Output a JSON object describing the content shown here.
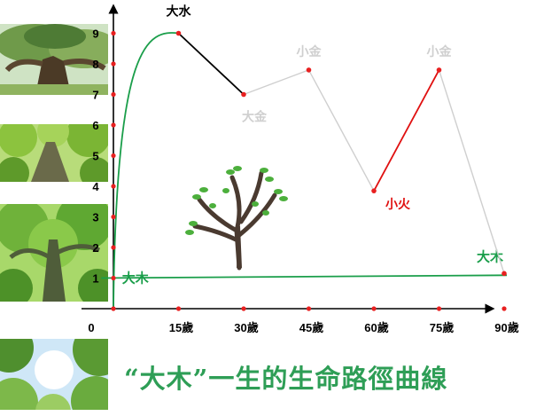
{
  "caption": "“大木”一生的生命路徑曲線",
  "colors": {
    "green": "#1a9e4a",
    "black": "#000000",
    "gray": "#cfcfcf",
    "red": "#e01010",
    "point": "#e82020"
  },
  "chart_data": {
    "type": "line",
    "x_ticks": [
      "15歲",
      "30歲",
      "45歲",
      "60歲",
      "75歲",
      "90歲"
    ],
    "x_tick_values": [
      15,
      30,
      45,
      60,
      75,
      90
    ],
    "y_ticks": [
      1,
      2,
      3,
      4,
      5,
      6,
      7,
      8,
      9
    ],
    "origin_label": "0",
    "xlim": [
      0,
      95
    ],
    "ylim": [
      0,
      10
    ],
    "baseline": {
      "label": "大木",
      "end_label": "大木",
      "y": 1.0,
      "y_end": 1.15,
      "color": "green"
    },
    "points": [
      {
        "x": 0,
        "y": 0
      },
      {
        "x": 15,
        "y": 9.0,
        "label": "大水"
      },
      {
        "x": 30,
        "y": 7.0,
        "label": "大金"
      },
      {
        "x": 45,
        "y": 7.8,
        "label": "小金"
      },
      {
        "x": 60,
        "y": 3.85,
        "label": "小火"
      },
      {
        "x": 75,
        "y": 7.8,
        "label": "小金"
      },
      {
        "x": 90,
        "y": 1.15
      }
    ],
    "segments": [
      {
        "from": 0,
        "to": 1,
        "color": "green",
        "curve": true
      },
      {
        "from": 1,
        "to": 2,
        "color": "black"
      },
      {
        "from": 2,
        "to": 3,
        "color": "gray"
      },
      {
        "from": 3,
        "to": 4,
        "color": "gray"
      },
      {
        "from": 4,
        "to": 5,
        "color": "red"
      },
      {
        "from": 5,
        "to": 6,
        "color": "gray"
      }
    ],
    "label_colors": [
      "",
      "black",
      "gray",
      "gray",
      "red",
      "gray",
      ""
    ]
  }
}
